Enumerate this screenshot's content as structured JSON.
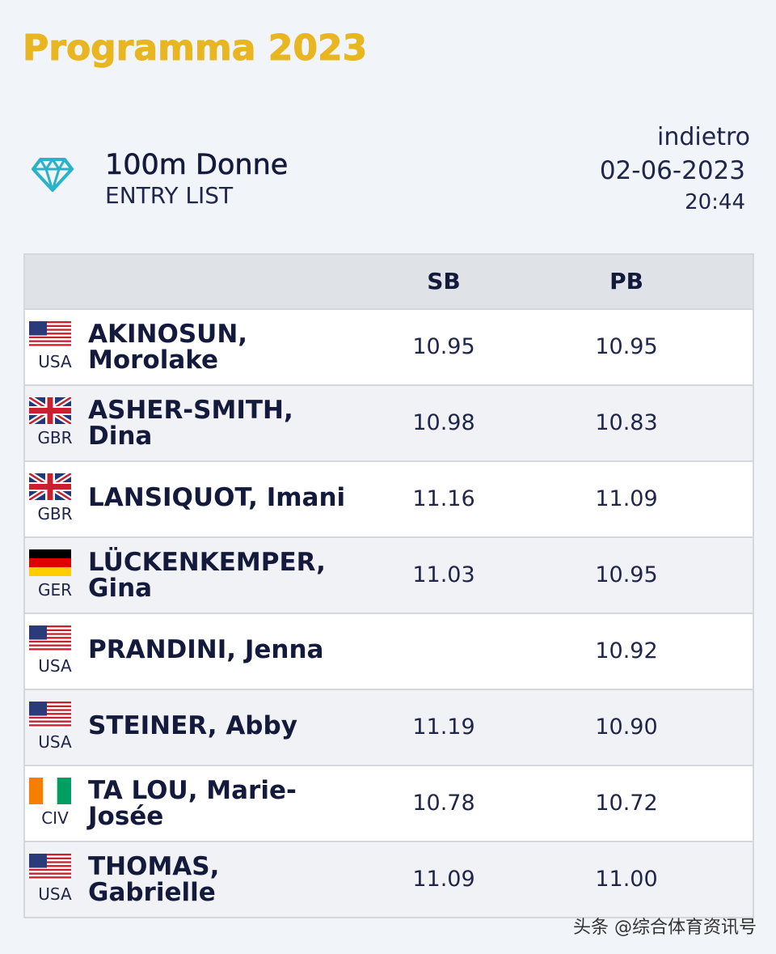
{
  "page": {
    "title": "Programma 2023"
  },
  "event": {
    "name": "100m Donne",
    "subtitle": "ENTRY LIST",
    "back_label": "indietro",
    "date": "02-06-2023",
    "time": "20:44"
  },
  "table": {
    "columns": {
      "sb": "SB",
      "pb": "PB"
    },
    "rows": [
      {
        "country": "USA",
        "flag": "usa-flag-icon",
        "name": "AKINOSUN, Morolake",
        "sb": "10.95",
        "pb": "10.95"
      },
      {
        "country": "GBR",
        "flag": "gbr-flag-icon",
        "name": "ASHER-SMITH, Dina",
        "sb": "10.98",
        "pb": "10.83"
      },
      {
        "country": "GBR",
        "flag": "gbr-flag-icon",
        "name": "LANSIQUOT, Imani",
        "sb": "11.16",
        "pb": "11.09"
      },
      {
        "country": "GER",
        "flag": "ger-flag-icon",
        "name": "LÜCKENKEMPER, Gina",
        "sb": "11.03",
        "pb": "10.95"
      },
      {
        "country": "USA",
        "flag": "usa-flag-icon",
        "name": "PRANDINI, Jenna",
        "sb": "",
        "pb": "10.92"
      },
      {
        "country": "USA",
        "flag": "usa-flag-icon",
        "name": "STEINER, Abby",
        "sb": "11.19",
        "pb": "10.90"
      },
      {
        "country": "CIV",
        "flag": "civ-flag-icon",
        "name": "TA LOU, Marie-Josée",
        "sb": "10.78",
        "pb": "10.72"
      },
      {
        "country": "USA",
        "flag": "usa-flag-icon",
        "name": "THOMAS, Gabrielle",
        "sb": "11.09",
        "pb": "11.00"
      }
    ]
  },
  "watermark": "头条 @综合体育资讯号",
  "colors": {
    "title_gold": "#e8b620",
    "text_navy": "#141a3c",
    "icon_teal": "#2ab3c6"
  }
}
